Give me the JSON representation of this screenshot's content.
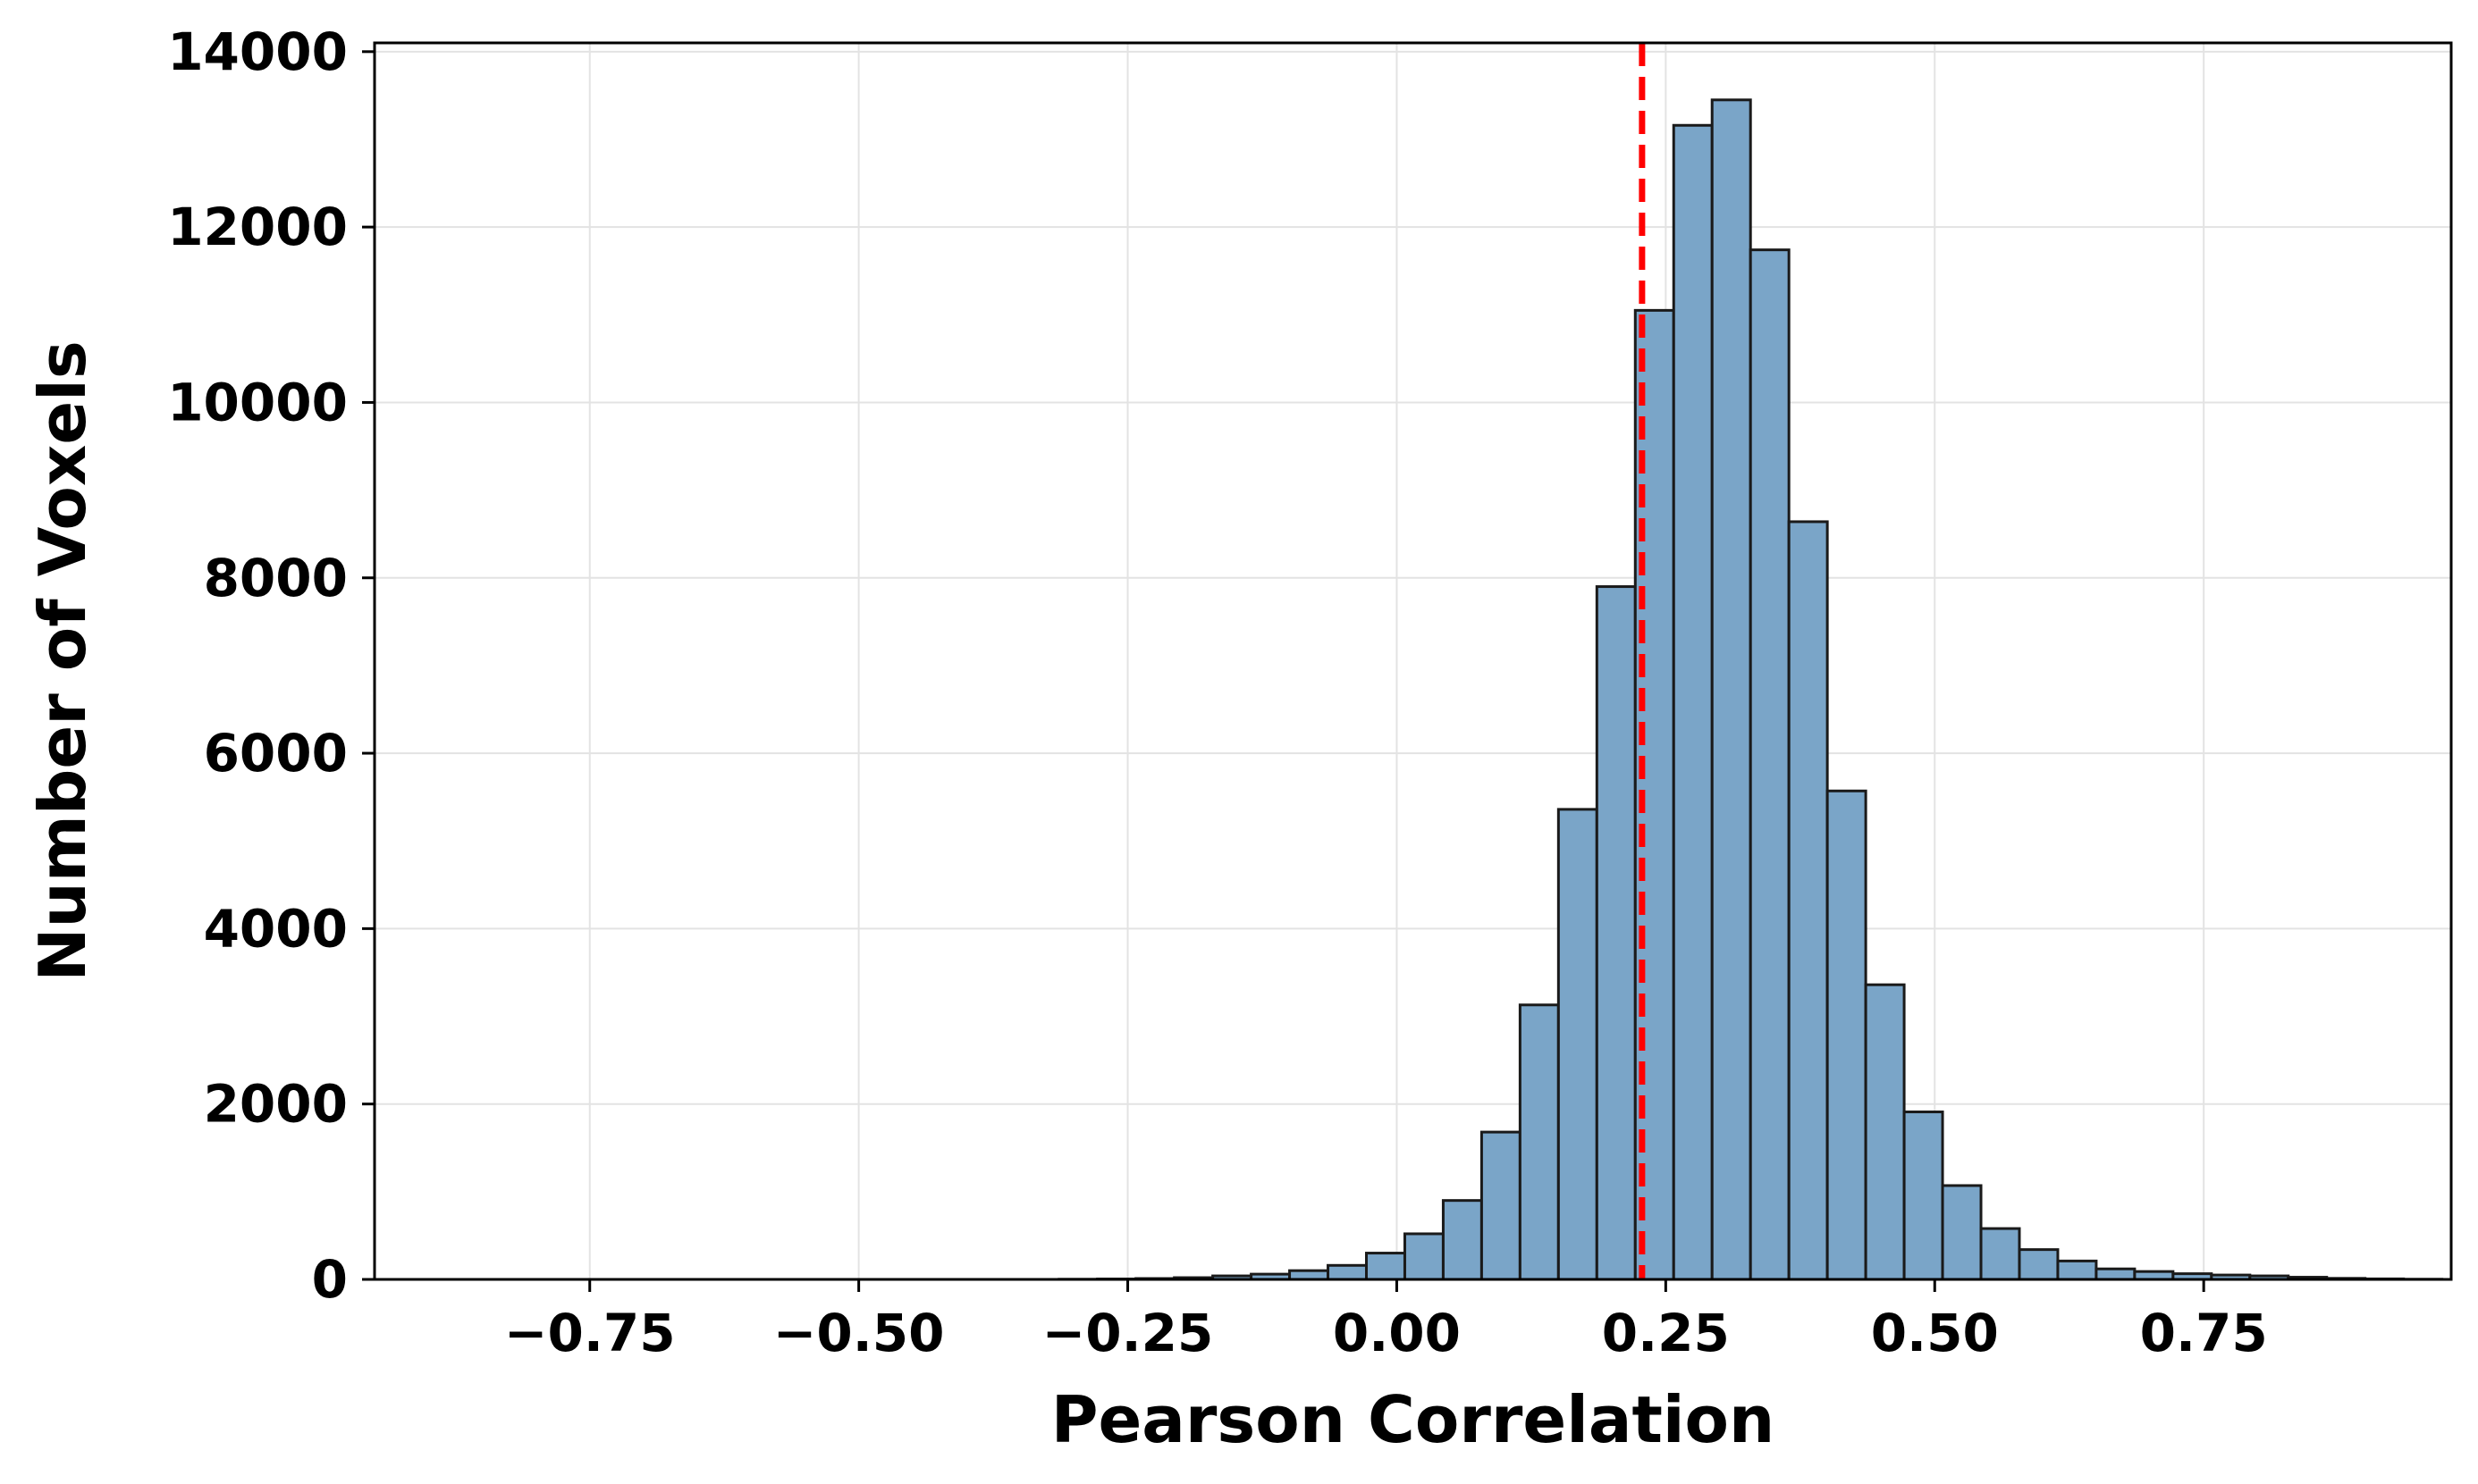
{
  "chart_data": {
    "type": "bar",
    "subtype": "histogram",
    "title": "",
    "xlabel": "Pearson Correlation",
    "ylabel": "Number of Voxels",
    "xlim": [
      -0.95,
      0.98
    ],
    "ylim": [
      0,
      14100
    ],
    "xticks": [
      -0.75,
      -0.5,
      -0.25,
      0.0,
      0.25,
      0.5,
      0.75
    ],
    "xtick_labels": [
      "−0.75",
      "−0.50",
      "−0.25",
      "0.00",
      "0.25",
      "0.50",
      "0.75"
    ],
    "yticks": [
      0,
      2000,
      4000,
      6000,
      8000,
      10000,
      12000,
      14000
    ],
    "ytick_labels": [
      "0",
      "2000",
      "4000",
      "6000",
      "8000",
      "10000",
      "12000",
      "14000"
    ],
    "grid": true,
    "bin_width": 0.0357,
    "bin_start": -0.885,
    "values": [
      0,
      0,
      0,
      0,
      0,
      0,
      0,
      0,
      0,
      0,
      0,
      0,
      0,
      0,
      0,
      0,
      2,
      5,
      10,
      20,
      40,
      60,
      100,
      160,
      300,
      520,
      900,
      1680,
      3130,
      5360,
      7900,
      11050,
      13160,
      13450,
      11740,
      8640,
      5570,
      3360,
      1910,
      1070,
      580,
      340,
      210,
      120,
      90,
      65,
      50,
      40,
      25,
      12,
      6,
      2
    ],
    "mean_line": {
      "x": 0.228,
      "color": "#ff0000",
      "style": "dashed"
    },
    "colors": {
      "bar_fill": "#7aa5c8",
      "bar_edge": "#1a1a1a"
    }
  }
}
